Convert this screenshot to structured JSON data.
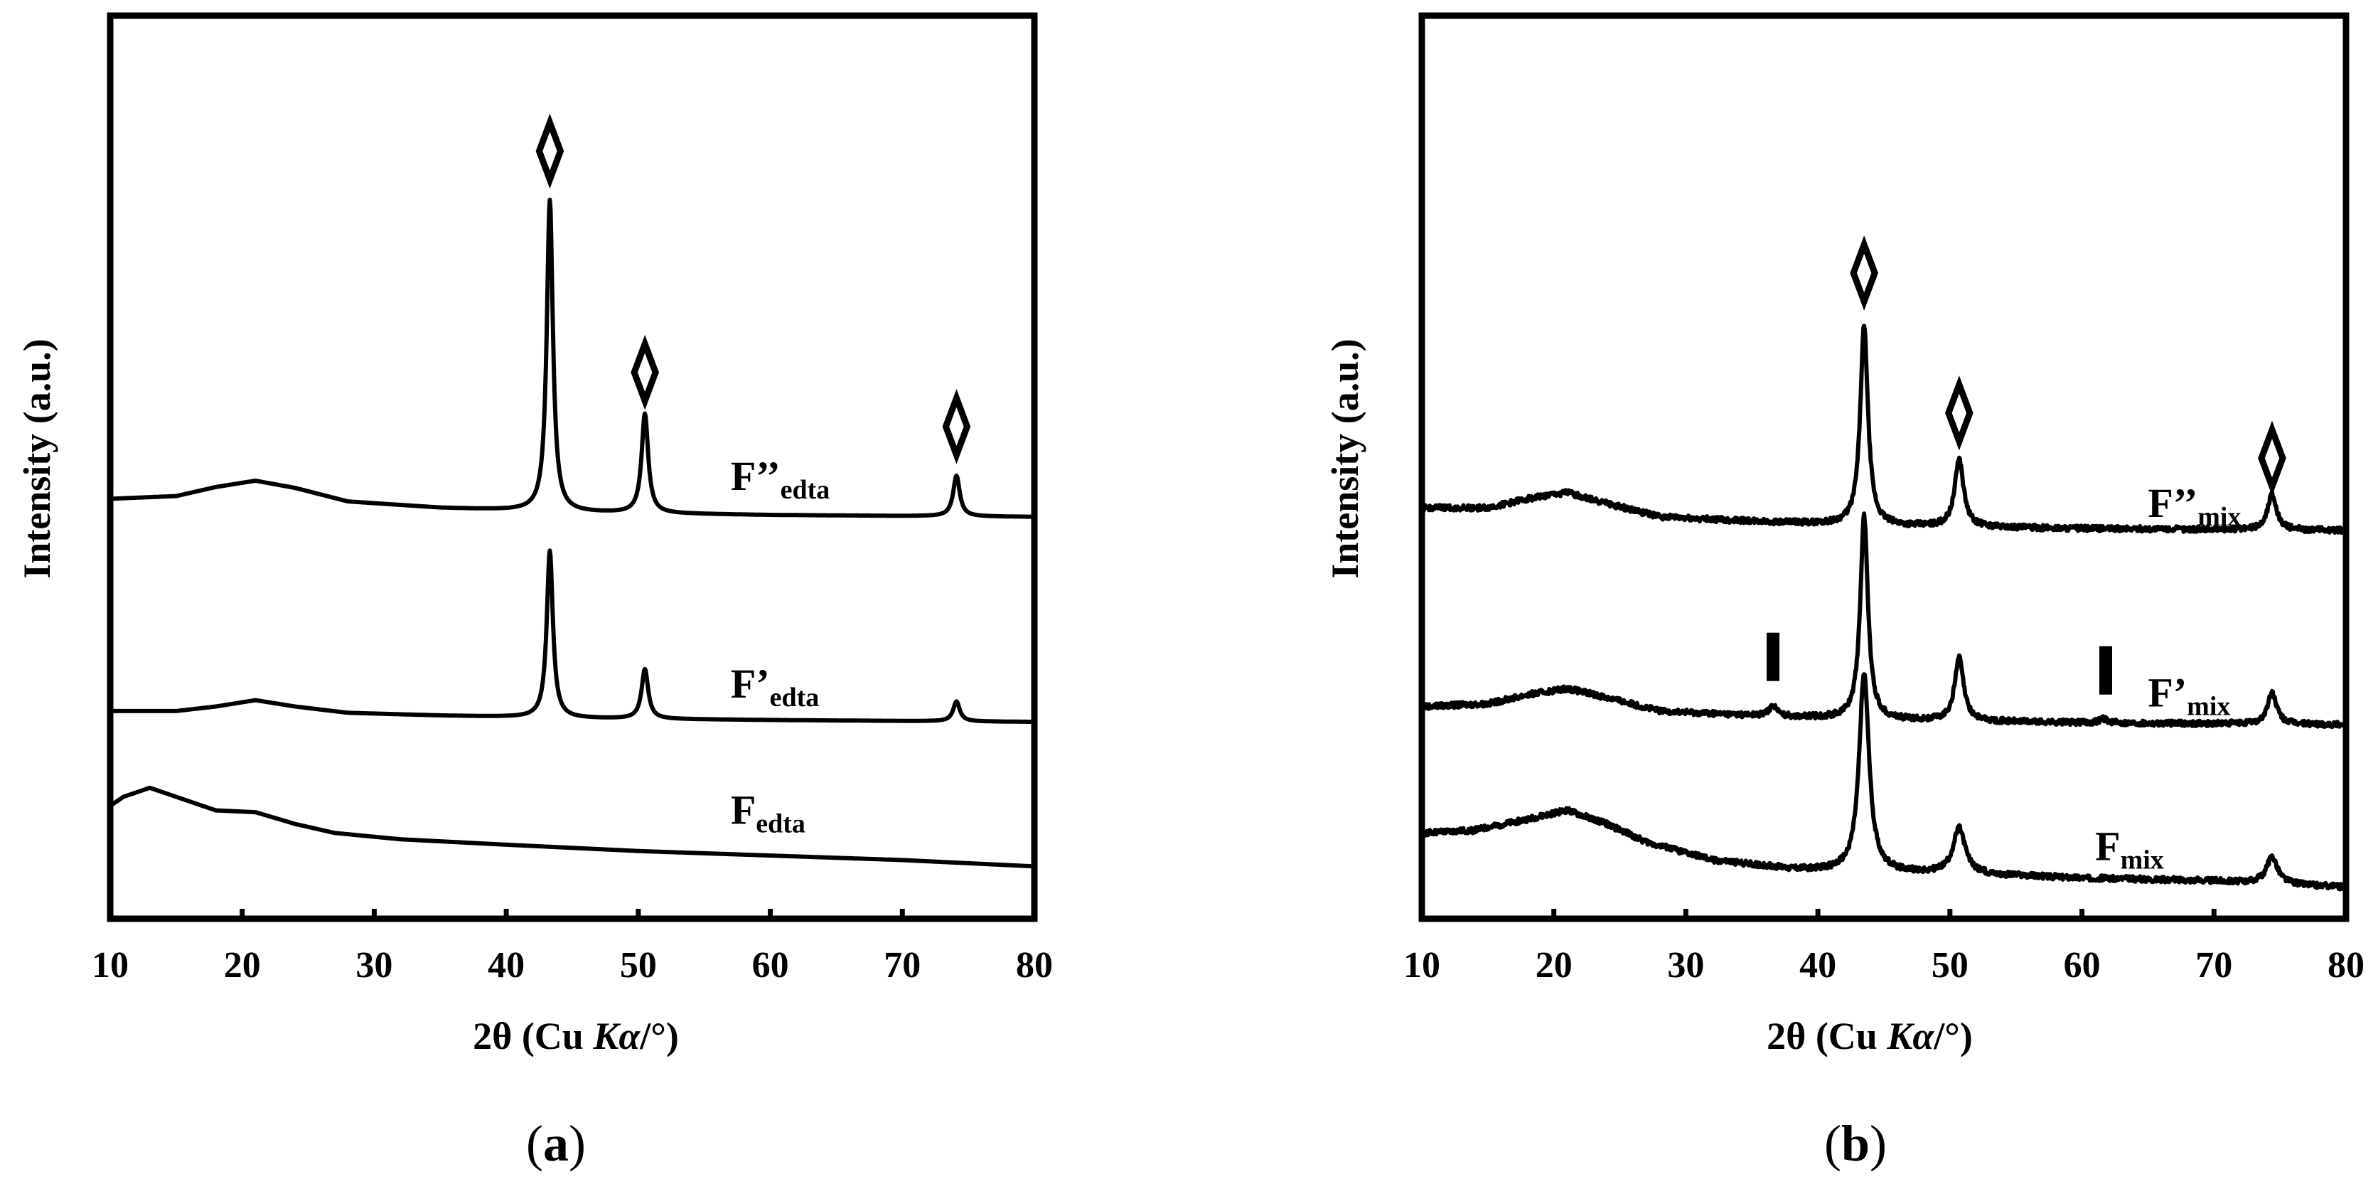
{
  "chart_data": [
    {
      "panel": "a",
      "caption_letter": "a",
      "type": "line",
      "xlabel_prefix": "2θ (Cu ",
      "xlabel_italic": "Kα",
      "xlabel_suffix": "/°)",
      "ylabel": "Intensity (a.u.)",
      "xlim": [
        10,
        80
      ],
      "xticks": [
        10,
        20,
        30,
        40,
        50,
        60,
        70,
        80
      ],
      "ylim": [
        0,
        10
      ],
      "series": [
        {
          "name": "F_edta",
          "label_main": "F",
          "label_sub": "edta",
          "baseline": [
            [
              10,
              1.25
            ],
            [
              11,
              1.35
            ],
            [
              13,
              1.45
            ],
            [
              15,
              1.35
            ],
            [
              18,
              1.2
            ],
            [
              21,
              1.18
            ],
            [
              24,
              1.05
            ],
            [
              27,
              0.95
            ],
            [
              32,
              0.88
            ],
            [
              40,
              0.82
            ],
            [
              50,
              0.75
            ],
            [
              60,
              0.7
            ],
            [
              70,
              0.65
            ],
            [
              80,
              0.58
            ]
          ],
          "peaks": [],
          "label_pos": [
            57,
            1.05
          ]
        },
        {
          "name": "F'_edta",
          "label_main": "F’",
          "label_sub": "edta",
          "baseline": [
            [
              10,
              2.3
            ],
            [
              15,
              2.3
            ],
            [
              18,
              2.35
            ],
            [
              21,
              2.42
            ],
            [
              24,
              2.35
            ],
            [
              28,
              2.28
            ],
            [
              35,
              2.25
            ],
            [
              45,
              2.22
            ],
            [
              60,
              2.2
            ],
            [
              80,
              2.18
            ]
          ],
          "peaks": [
            {
              "pos": 43.3,
              "height": 1.85,
              "width": 0.28
            },
            {
              "pos": 50.5,
              "height": 0.55,
              "width": 0.3
            },
            {
              "pos": 74.1,
              "height": 0.22,
              "width": 0.3
            }
          ],
          "label_pos": [
            57,
            2.45
          ]
        },
        {
          "name": "F''_edta",
          "label_main": "F’’",
          "label_sub": "edta",
          "baseline": [
            [
              10,
              4.65
            ],
            [
              15,
              4.68
            ],
            [
              18,
              4.78
            ],
            [
              21,
              4.85
            ],
            [
              24,
              4.77
            ],
            [
              28,
              4.62
            ],
            [
              35,
              4.55
            ],
            [
              45,
              4.5
            ],
            [
              60,
              4.47
            ],
            [
              80,
              4.45
            ]
          ],
          "peaks": [
            {
              "pos": 43.3,
              "height": 3.45,
              "width": 0.28
            },
            {
              "pos": 50.5,
              "height": 1.1,
              "width": 0.3
            },
            {
              "pos": 74.1,
              "height": 0.45,
              "width": 0.3
            }
          ],
          "label_pos": [
            57,
            4.75
          ],
          "diamonds": [
            [
              43.3,
              8.5
            ],
            [
              50.5,
              6.05
            ],
            [
              74.1,
              5.45
            ]
          ]
        }
      ]
    },
    {
      "panel": "b",
      "caption_letter": "b",
      "type": "line",
      "xlabel_prefix": "2θ (Cu ",
      "xlabel_italic": "Kα",
      "xlabel_suffix": "/°)",
      "ylabel": "Intensity (a.u.)",
      "xlim": [
        10,
        80
      ],
      "xticks": [
        10,
        20,
        30,
        40,
        50,
        60,
        70,
        80
      ],
      "ylim": [
        0,
        10
      ],
      "series": [
        {
          "name": "F_mix",
          "label_main": "F",
          "label_sub": "mix",
          "baseline": [
            [
              10,
              0.95
            ],
            [
              14,
              0.98
            ],
            [
              18,
              1.1
            ],
            [
              21,
              1.2
            ],
            [
              24,
              1.05
            ],
            [
              27,
              0.85
            ],
            [
              32,
              0.65
            ],
            [
              38,
              0.55
            ],
            [
              42,
              0.52
            ],
            [
              50,
              0.5
            ],
            [
              60,
              0.45
            ],
            [
              70,
              0.42
            ],
            [
              80,
              0.35
            ]
          ],
          "peaks": [
            {
              "pos": 43.5,
              "height": 2.2,
              "width": 0.45
            },
            {
              "pos": 50.7,
              "height": 0.5,
              "width": 0.55
            },
            {
              "pos": 74.4,
              "height": 0.3,
              "width": 0.5
            }
          ],
          "label_pos": [
            61,
            0.65
          ]
        },
        {
          "name": "F'_mix",
          "label_main": "F’",
          "label_sub": "mix",
          "baseline": [
            [
              10,
              2.35
            ],
            [
              15,
              2.38
            ],
            [
              18,
              2.48
            ],
            [
              21,
              2.55
            ],
            [
              24,
              2.45
            ],
            [
              28,
              2.3
            ],
            [
              35,
              2.25
            ],
            [
              45,
              2.2
            ],
            [
              60,
              2.17
            ],
            [
              80,
              2.15
            ]
          ],
          "peaks": [
            {
              "pos": 36.6,
              "height": 0.12,
              "width": 0.35
            },
            {
              "pos": 43.5,
              "height": 2.25,
              "width": 0.35
            },
            {
              "pos": 50.7,
              "height": 0.7,
              "width": 0.4
            },
            {
              "pos": 61.6,
              "height": 0.05,
              "width": 0.35
            },
            {
              "pos": 74.4,
              "height": 0.35,
              "width": 0.4
            }
          ],
          "label_pos": [
            65,
            2.35
          ],
          "bars": [
            [
              36.6,
              2.9
            ],
            [
              61.8,
              2.75
            ]
          ]
        },
        {
          "name": "F''_mix",
          "label_main": "F’’",
          "label_sub": "mix",
          "baseline": [
            [
              10,
              4.55
            ],
            [
              15,
              4.55
            ],
            [
              18,
              4.65
            ],
            [
              21,
              4.72
            ],
            [
              24,
              4.6
            ],
            [
              28,
              4.45
            ],
            [
              35,
              4.4
            ],
            [
              45,
              4.35
            ],
            [
              60,
              4.32
            ],
            [
              80,
              4.3
            ]
          ],
          "peaks": [
            {
              "pos": 43.5,
              "height": 2.2,
              "width": 0.35
            },
            {
              "pos": 50.7,
              "height": 0.75,
              "width": 0.4
            },
            {
              "pos": 74.4,
              "height": 0.4,
              "width": 0.4
            }
          ],
          "label_pos": [
            65,
            4.45
          ],
          "diamonds": [
            [
              43.5,
              7.15
            ],
            [
              50.7,
              5.6
            ],
            [
              74.4,
              5.1
            ]
          ]
        }
      ]
    }
  ]
}
